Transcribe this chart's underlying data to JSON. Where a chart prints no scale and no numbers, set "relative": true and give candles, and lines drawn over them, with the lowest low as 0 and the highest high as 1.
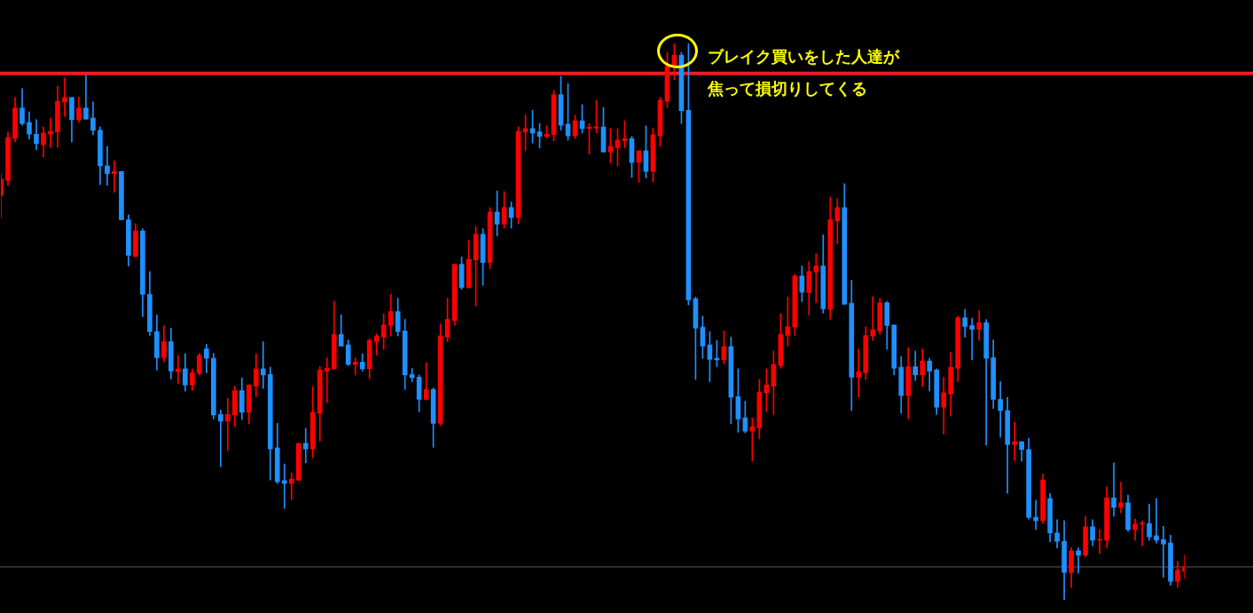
{
  "chart_data": {
    "type": "candlestick",
    "relative": true,
    "categories": [
      null,
      null,
      null,
      null,
      null,
      null,
      null,
      null,
      null,
      null,
      null,
      null,
      null,
      null,
      null,
      null,
      null,
      null,
      null,
      null,
      null,
      null,
      null,
      null,
      null,
      null,
      null,
      null,
      null,
      null,
      null,
      null,
      null,
      null,
      null,
      null,
      null,
      null,
      null,
      null,
      null,
      null,
      null,
      null,
      null,
      null,
      null,
      null,
      null,
      null,
      null,
      null,
      null,
      null,
      null,
      null,
      null,
      null,
      null,
      null,
      null,
      null,
      null,
      null,
      null,
      null,
      null,
      null,
      null,
      null,
      null,
      null,
      null,
      null,
      null,
      null,
      null,
      null,
      null,
      null,
      null,
      null,
      null,
      null,
      null,
      null,
      null,
      null,
      null,
      null,
      null,
      null,
      null,
      null,
      null,
      null,
      null,
      null,
      null,
      null,
      null,
      null,
      null,
      null,
      null,
      null,
      null,
      null,
      null,
      null,
      null,
      null,
      null,
      null,
      null,
      null,
      null,
      null,
      null,
      null,
      null,
      null,
      null,
      null,
      null,
      null,
      null,
      null,
      null,
      null,
      null,
      null,
      null,
      null,
      null,
      null,
      null,
      null,
      null,
      null,
      null,
      null,
      null,
      null,
      null,
      null,
      null,
      null,
      null,
      null,
      null,
      null,
      null,
      null,
      null,
      null,
      null,
      null,
      null,
      null,
      null,
      null,
      null,
      null,
      null,
      null,
      null,
      null
    ],
    "ohlc": [
      [
        0.727,
        0.766,
        0.687,
        0.756
      ],
      [
        0.754,
        0.841,
        0.745,
        0.831
      ],
      [
        0.829,
        0.903,
        0.823,
        0.884
      ],
      [
        0.884,
        0.919,
        0.853,
        0.856
      ],
      [
        0.858,
        0.877,
        0.828,
        0.837
      ],
      [
        0.837,
        0.863,
        0.809,
        0.82
      ],
      [
        0.818,
        0.85,
        0.796,
        0.839
      ],
      [
        0.837,
        0.866,
        0.813,
        0.842
      ],
      [
        0.841,
        0.923,
        0.813,
        0.896
      ],
      [
        0.895,
        0.938,
        0.869,
        0.903
      ],
      [
        0.903,
        0.903,
        0.823,
        0.863
      ],
      [
        0.863,
        0.904,
        0.858,
        0.884
      ],
      [
        0.884,
        0.943,
        0.864,
        0.864
      ],
      [
        0.866,
        0.895,
        0.836,
        0.844
      ],
      [
        0.844,
        0.85,
        0.746,
        0.78
      ],
      [
        0.78,
        0.815,
        0.745,
        0.766
      ],
      [
        0.766,
        0.789,
        0.732,
        0.77
      ],
      [
        0.77,
        0.77,
        0.683,
        0.683
      ],
      [
        0.683,
        0.692,
        0.6,
        0.619
      ],
      [
        0.617,
        0.676,
        0.617,
        0.663
      ],
      [
        0.663,
        0.667,
        0.509,
        0.549
      ],
      [
        0.549,
        0.59,
        0.475,
        0.482
      ],
      [
        0.482,
        0.512,
        0.413,
        0.435
      ],
      [
        0.435,
        0.493,
        0.427,
        0.464
      ],
      [
        0.464,
        0.488,
        0.397,
        0.411
      ],
      [
        0.41,
        0.439,
        0.389,
        0.415
      ],
      [
        0.415,
        0.442,
        0.375,
        0.386
      ],
      [
        0.386,
        0.415,
        0.376,
        0.408
      ],
      [
        0.407,
        0.443,
        0.404,
        0.439
      ],
      [
        0.451,
        0.459,
        0.408,
        0.434
      ],
      [
        0.434,
        0.443,
        0.325,
        0.332
      ],
      [
        0.333,
        0.341,
        0.239,
        0.321
      ],
      [
        0.321,
        0.362,
        0.268,
        0.333
      ],
      [
        0.332,
        0.384,
        0.311,
        0.376
      ],
      [
        0.376,
        0.399,
        0.324,
        0.337
      ],
      [
        0.337,
        0.386,
        0.316,
        0.386
      ],
      [
        0.384,
        0.442,
        0.365,
        0.415
      ],
      [
        0.415,
        0.464,
        0.38,
        0.404
      ],
      [
        0.405,
        0.418,
        0.215,
        0.271
      ],
      [
        0.273,
        0.317,
        0.209,
        0.212
      ],
      [
        0.214,
        0.244,
        0.164,
        0.209
      ],
      [
        0.209,
        0.228,
        0.18,
        0.217
      ],
      [
        0.215,
        0.281,
        0.214,
        0.281
      ],
      [
        0.281,
        0.308,
        0.246,
        0.271
      ],
      [
        0.271,
        0.383,
        0.255,
        0.337
      ],
      [
        0.335,
        0.419,
        0.285,
        0.413
      ],
      [
        0.411,
        0.435,
        0.354,
        0.416
      ],
      [
        0.415,
        0.537,
        0.415,
        0.477
      ],
      [
        0.477,
        0.512,
        0.456,
        0.456
      ],
      [
        0.458,
        0.467,
        0.421,
        0.423
      ],
      [
        0.423,
        0.435,
        0.404,
        0.427
      ],
      [
        0.427,
        0.442,
        0.411,
        0.415
      ],
      [
        0.415,
        0.469,
        0.397,
        0.466
      ],
      [
        0.464,
        0.478,
        0.44,
        0.474
      ],
      [
        0.472,
        0.514,
        0.45,
        0.494
      ],
      [
        0.493,
        0.549,
        0.474,
        0.518
      ],
      [
        0.518,
        0.542,
        0.474,
        0.482
      ],
      [
        0.483,
        0.504,
        0.378,
        0.404
      ],
      [
        0.405,
        0.416,
        0.392,
        0.399
      ],
      [
        0.4,
        0.404,
        0.338,
        0.36
      ],
      [
        0.36,
        0.426,
        0.359,
        0.378
      ],
      [
        0.378,
        0.381,
        0.274,
        0.317
      ],
      [
        0.317,
        0.496,
        0.313,
        0.474
      ],
      [
        0.472,
        0.542,
        0.464,
        0.504
      ],
      [
        0.502,
        0.603,
        0.493,
        0.603
      ],
      [
        0.603,
        0.616,
        0.558,
        0.561
      ],
      [
        0.561,
        0.646,
        0.56,
        0.612
      ],
      [
        0.611,
        0.671,
        0.528,
        0.657
      ],
      [
        0.657,
        0.667,
        0.565,
        0.606
      ],
      [
        0.606,
        0.705,
        0.595,
        0.697
      ],
      [
        0.697,
        0.735,
        0.654,
        0.675
      ],
      [
        0.675,
        0.734,
        0.668,
        0.705
      ],
      [
        0.705,
        0.715,
        0.668,
        0.687
      ],
      [
        0.687,
        0.85,
        0.676,
        0.842
      ],
      [
        0.841,
        0.871,
        0.807,
        0.847
      ],
      [
        0.847,
        0.88,
        0.821,
        0.839
      ],
      [
        0.841,
        0.856,
        0.812,
        0.833
      ],
      [
        0.833,
        0.852,
        0.829,
        0.837
      ],
      [
        0.836,
        0.915,
        0.825,
        0.908
      ],
      [
        0.908,
        0.941,
        0.844,
        0.853
      ],
      [
        0.855,
        0.928,
        0.826,
        0.834
      ],
      [
        0.834,
        0.871,
        0.829,
        0.861
      ],
      [
        0.861,
        0.89,
        0.839,
        0.847
      ],
      [
        0.847,
        0.856,
        0.801,
        0.85
      ],
      [
        0.848,
        0.898,
        0.839,
        0.85
      ],
      [
        0.85,
        0.885,
        0.805,
        0.805
      ],
      [
        0.805,
        0.847,
        0.785,
        0.815
      ],
      [
        0.813,
        0.847,
        0.78,
        0.826
      ],
      [
        0.825,
        0.861,
        0.812,
        0.829
      ],
      [
        0.829,
        0.833,
        0.759,
        0.786
      ],
      [
        0.786,
        0.807,
        0.75,
        0.807
      ],
      [
        0.807,
        0.852,
        0.758,
        0.77
      ],
      [
        0.77,
        0.848,
        0.751,
        0.836
      ],
      [
        0.834,
        0.903,
        0.815,
        0.898
      ],
      [
        0.896,
        0.984,
        0.885,
        0.959
      ],
      [
        0.957,
        1,
        0.935,
        0.979
      ],
      [
        0.979,
        0.984,
        0.856,
        0.879
      ],
      [
        0.88,
        1,
        0.53,
        0.539
      ],
      [
        0.541,
        0.544,
        0.396,
        0.488
      ],
      [
        0.49,
        0.51,
        0.434,
        0.456
      ],
      [
        0.458,
        0.482,
        0.392,
        0.432
      ],
      [
        0.434,
        0.466,
        0.419,
        0.431
      ],
      [
        0.431,
        0.483,
        0.424,
        0.455
      ],
      [
        0.455,
        0.472,
        0.316,
        0.364
      ],
      [
        0.365,
        0.415,
        0.301,
        0.325
      ],
      [
        0.327,
        0.357,
        0.3,
        0.303
      ],
      [
        0.303,
        0.327,
        0.249,
        0.311
      ],
      [
        0.309,
        0.396,
        0.289,
        0.373
      ],
      [
        0.372,
        0.415,
        0.338,
        0.386
      ],
      [
        0.384,
        0.447,
        0.333,
        0.423
      ],
      [
        0.421,
        0.514,
        0.416,
        0.477
      ],
      [
        0.475,
        0.544,
        0.456,
        0.491
      ],
      [
        0.49,
        0.585,
        0.475,
        0.582
      ],
      [
        0.582,
        0.6,
        0.536,
        0.553
      ],
      [
        0.552,
        0.608,
        0.512,
        0.59
      ],
      [
        0.589,
        0.622,
        0.534,
        0.6
      ],
      [
        0.6,
        0.656,
        0.515,
        0.523
      ],
      [
        0.522,
        0.724,
        0.504,
        0.683
      ],
      [
        0.681,
        0.721,
        0.64,
        0.705
      ],
      [
        0.705,
        0.748,
        0.531,
        0.531
      ],
      [
        0.533,
        0.574,
        0.34,
        0.4
      ],
      [
        0.4,
        0.451,
        0.364,
        0.41
      ],
      [
        0.408,
        0.491,
        0.396,
        0.475
      ],
      [
        0.474,
        0.545,
        0.466,
        0.485
      ],
      [
        0.483,
        0.542,
        0.477,
        0.534
      ],
      [
        0.534,
        0.536,
        0.45,
        0.493
      ],
      [
        0.494,
        0.494,
        0.404,
        0.416
      ],
      [
        0.418,
        0.437,
        0.335,
        0.367
      ],
      [
        0.367,
        0.453,
        0.325,
        0.419
      ],
      [
        0.419,
        0.447,
        0.394,
        0.404
      ],
      [
        0.404,
        0.451,
        0.383,
        0.429
      ],
      [
        0.429,
        0.434,
        0.375,
        0.411
      ],
      [
        0.413,
        0.415,
        0.333,
        0.346
      ],
      [
        0.346,
        0.4,
        0.298,
        0.372
      ],
      [
        0.37,
        0.445,
        0.33,
        0.418
      ],
      [
        0.416,
        0.51,
        0.392,
        0.507
      ],
      [
        0.507,
        0.522,
        0.472,
        0.491
      ],
      [
        0.493,
        0.506,
        0.431,
        0.486
      ],
      [
        0.486,
        0.52,
        0.466,
        0.498
      ],
      [
        0.498,
        0.504,
        0.278,
        0.434
      ],
      [
        0.435,
        0.467,
        0.344,
        0.36
      ],
      [
        0.36,
        0.392,
        0.292,
        0.34
      ],
      [
        0.34,
        0.364,
        0.191,
        0.279
      ],
      [
        0.279,
        0.319,
        0.25,
        0.284
      ],
      [
        0.284,
        0.284,
        0.249,
        0.27
      ],
      [
        0.27,
        0.29,
        0.145,
        0.148
      ],
      [
        0.148,
        0.179,
        0.126,
        0.142
      ],
      [
        0.142,
        0.226,
        0.137,
        0.215
      ],
      [
        0.182,
        0.191,
        0.104,
        0.12
      ],
      [
        0.12,
        0.144,
        0.093,
        0.105
      ],
      [
        0.105,
        0.142,
        0,
        0.049
      ],
      [
        0.049,
        0.094,
        0.022,
        0.088
      ],
      [
        0.088,
        0.093,
        0.048,
        0.08
      ],
      [
        0.08,
        0.15,
        0.077,
        0.131
      ],
      [
        0.131,
        0.144,
        0.097,
        0.107
      ],
      [
        0.107,
        0.126,
        0.083,
        0.108
      ],
      [
        0.107,
        0.203,
        0.094,
        0.183
      ],
      [
        0.183,
        0.246,
        0.15,
        0.166
      ],
      [
        0.166,
        0.211,
        0.156,
        0.174
      ],
      [
        0.174,
        0.188,
        0.123,
        0.126
      ],
      [
        0.126,
        0.145,
        0.107,
        0.136
      ],
      [
        0.136,
        0.142,
        0.097,
        0.137
      ],
      [
        0.137,
        0.172,
        0.107,
        0.113
      ],
      [
        0.115,
        0.182,
        0.102,
        0.107
      ],
      [
        0.108,
        0.132,
        0.04,
        0.1
      ],
      [
        0.102,
        0.116,
        0.026,
        0.033
      ],
      [
        0.033,
        0.069,
        0.022,
        0.053
      ],
      [
        0.051,
        0.08,
        0.038,
        0.059
      ]
    ],
    "colors": [
      "#ff0000",
      "#ff0000",
      "#ff0000",
      "#1e90ff",
      "#1e90ff",
      "#1e90ff",
      "#ff0000",
      "#ff0000",
      "#ff0000",
      "#ff0000",
      "#1e90ff",
      "#ff0000",
      "#1e90ff",
      "#1e90ff",
      "#1e90ff",
      "#1e90ff",
      "#ff0000",
      "#1e90ff",
      "#1e90ff",
      "#ff0000",
      "#1e90ff",
      "#1e90ff",
      "#1e90ff",
      "#ff0000",
      "#1e90ff",
      "#ff0000",
      "#1e90ff",
      "#ff0000",
      "#ff0000",
      "#1e90ff",
      "#1e90ff",
      "#1e90ff",
      "#ff0000",
      "#ff0000",
      "#1e90ff",
      "#ff0000",
      "#ff0000",
      "#1e90ff",
      "#1e90ff",
      "#1e90ff",
      "#1e90ff",
      "#ff0000",
      "#ff0000",
      "#1e90ff",
      "#ff0000",
      "#ff0000",
      "#ff0000",
      "#ff0000",
      "#1e90ff",
      "#1e90ff",
      "#ff0000",
      "#1e90ff",
      "#ff0000",
      "#ff0000",
      "#ff0000",
      "#ff0000",
      "#1e90ff",
      "#1e90ff",
      "#1e90ff",
      "#1e90ff",
      "#ff0000",
      "#1e90ff",
      "#ff0000",
      "#ff0000",
      "#ff0000",
      "#1e90ff",
      "#ff0000",
      "#ff0000",
      "#1e90ff",
      "#ff0000",
      "#1e90ff",
      "#ff0000",
      "#1e90ff",
      "#ff0000",
      "#ff0000",
      "#1e90ff",
      "#1e90ff",
      "#ff0000",
      "#ff0000",
      "#1e90ff",
      "#1e90ff",
      "#ff0000",
      "#1e90ff",
      "#ff0000",
      "#ff0000",
      "#1e90ff",
      "#ff0000",
      "#ff0000",
      "#ff0000",
      "#1e90ff",
      "#ff0000",
      "#1e90ff",
      "#ff0000",
      "#ff0000",
      "#ff0000",
      "#ff0000",
      "#1e90ff",
      "#1e90ff",
      "#1e90ff",
      "#1e90ff",
      "#1e90ff",
      "#1e90ff",
      "#ff0000",
      "#1e90ff",
      "#1e90ff",
      "#1e90ff",
      "#ff0000",
      "#ff0000",
      "#ff0000",
      "#ff0000",
      "#ff0000",
      "#ff0000",
      "#ff0000",
      "#1e90ff",
      "#ff0000",
      "#ff0000",
      "#1e90ff",
      "#ff0000",
      "#ff0000",
      "#1e90ff",
      "#1e90ff",
      "#ff0000",
      "#ff0000",
      "#ff0000",
      "#ff0000",
      "#1e90ff",
      "#1e90ff",
      "#1e90ff",
      "#ff0000",
      "#1e90ff",
      "#ff0000",
      "#1e90ff",
      "#1e90ff",
      "#ff0000",
      "#ff0000",
      "#ff0000",
      "#1e90ff",
      "#1e90ff",
      "#ff0000",
      "#1e90ff",
      "#1e90ff",
      "#1e90ff",
      "#1e90ff",
      "#ff0000",
      "#1e90ff",
      "#1e90ff",
      "#1e90ff",
      "#ff0000",
      "#1e90ff",
      "#1e90ff",
      "#1e90ff",
      "#ff0000",
      "#1e90ff",
      "#ff0000",
      "#1e90ff",
      "#ff0000",
      "#ff0000",
      "#1e90ff",
      "#ff0000",
      "#1e90ff",
      "#ff0000",
      "#ff0000",
      "#1e90ff",
      "#1e90ff",
      "#1e90ff",
      "#1e90ff",
      "#ff0000",
      "#ff0000"
    ],
    "ref_lines": [
      {
        "axis": "y",
        "value": 0.946,
        "color": "#ee1c25"
      },
      {
        "axis": "y",
        "value": 0.059,
        "color": "#5a5a6e"
      }
    ],
    "annotations": [
      "ブレイク買いをした人達が",
      "焦って損切りしてくる"
    ]
  }
}
